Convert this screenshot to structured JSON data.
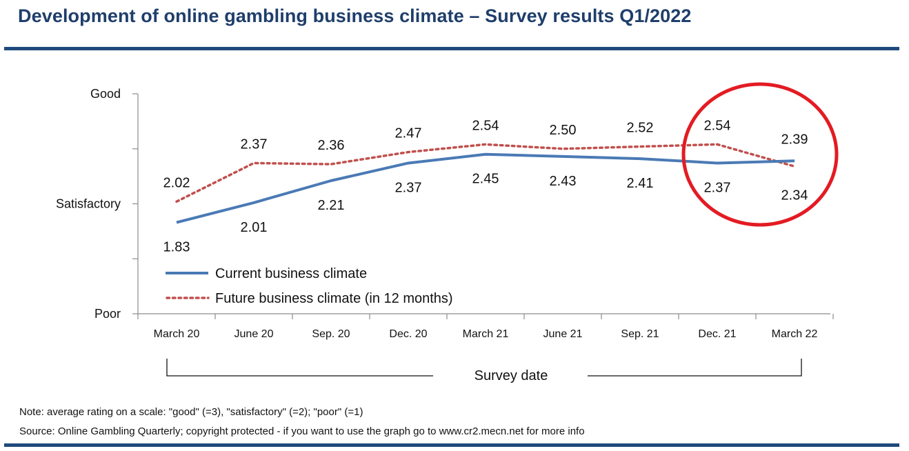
{
  "title": "Development of online gambling business climate – Survey results Q1/2022",
  "chart_data": {
    "type": "line",
    "title": "Development of online gambling business climate – Survey results Q1/2022",
    "categories": [
      "March 20",
      "June 20",
      "Sep. 20",
      "Dec. 20",
      "March 21",
      "June 21",
      "Sep. 21",
      "Dec. 21",
      "March 22"
    ],
    "series": [
      {
        "name": "Current business climate",
        "values": [
          1.83,
          2.01,
          2.21,
          2.37,
          2.45,
          2.43,
          2.41,
          2.37,
          2.39
        ],
        "labels": [
          "1.83",
          "2.01",
          "2.21",
          "2.37",
          "2.45",
          "2.43",
          "2.41",
          "2.37",
          "2.39"
        ],
        "color": "#4a7ab5",
        "style": "solid"
      },
      {
        "name": "Future business climate (in 12 months)",
        "values": [
          2.02,
          2.37,
          2.36,
          2.47,
          2.54,
          2.5,
          2.52,
          2.54,
          2.34
        ],
        "labels": [
          "2.02",
          "2.37",
          "2.36",
          "2.47",
          "2.54",
          "2.50",
          "2.52",
          "2.54",
          "2.34"
        ],
        "color": "#c0504d",
        "style": "dotted"
      }
    ],
    "ylim": [
      1,
      3
    ],
    "yticks": [
      1,
      1.5,
      2,
      2.5,
      3
    ],
    "ytick_labels": [
      {
        "value": 3,
        "label": "Good"
      },
      {
        "value": 2,
        "label": "Satisfactory"
      },
      {
        "value": 1,
        "label": "Poor"
      }
    ],
    "xlabel": "Survey date",
    "ylabel": "",
    "legend_position": "bottom-left",
    "highlight": {
      "description": "red circle",
      "categories": [
        "Dec. 21",
        "March 22"
      ],
      "color": "#e31b23"
    }
  },
  "notes": {
    "scale": "Note: average rating on a scale: \"good\" (=3), \"satisfactory\" (=2); \"poor\" (=1)",
    "source": "Source: Online Gambling Quarterly; copyright protected - if you want to use the graph go to www.cr2.mecn.net for more info"
  }
}
